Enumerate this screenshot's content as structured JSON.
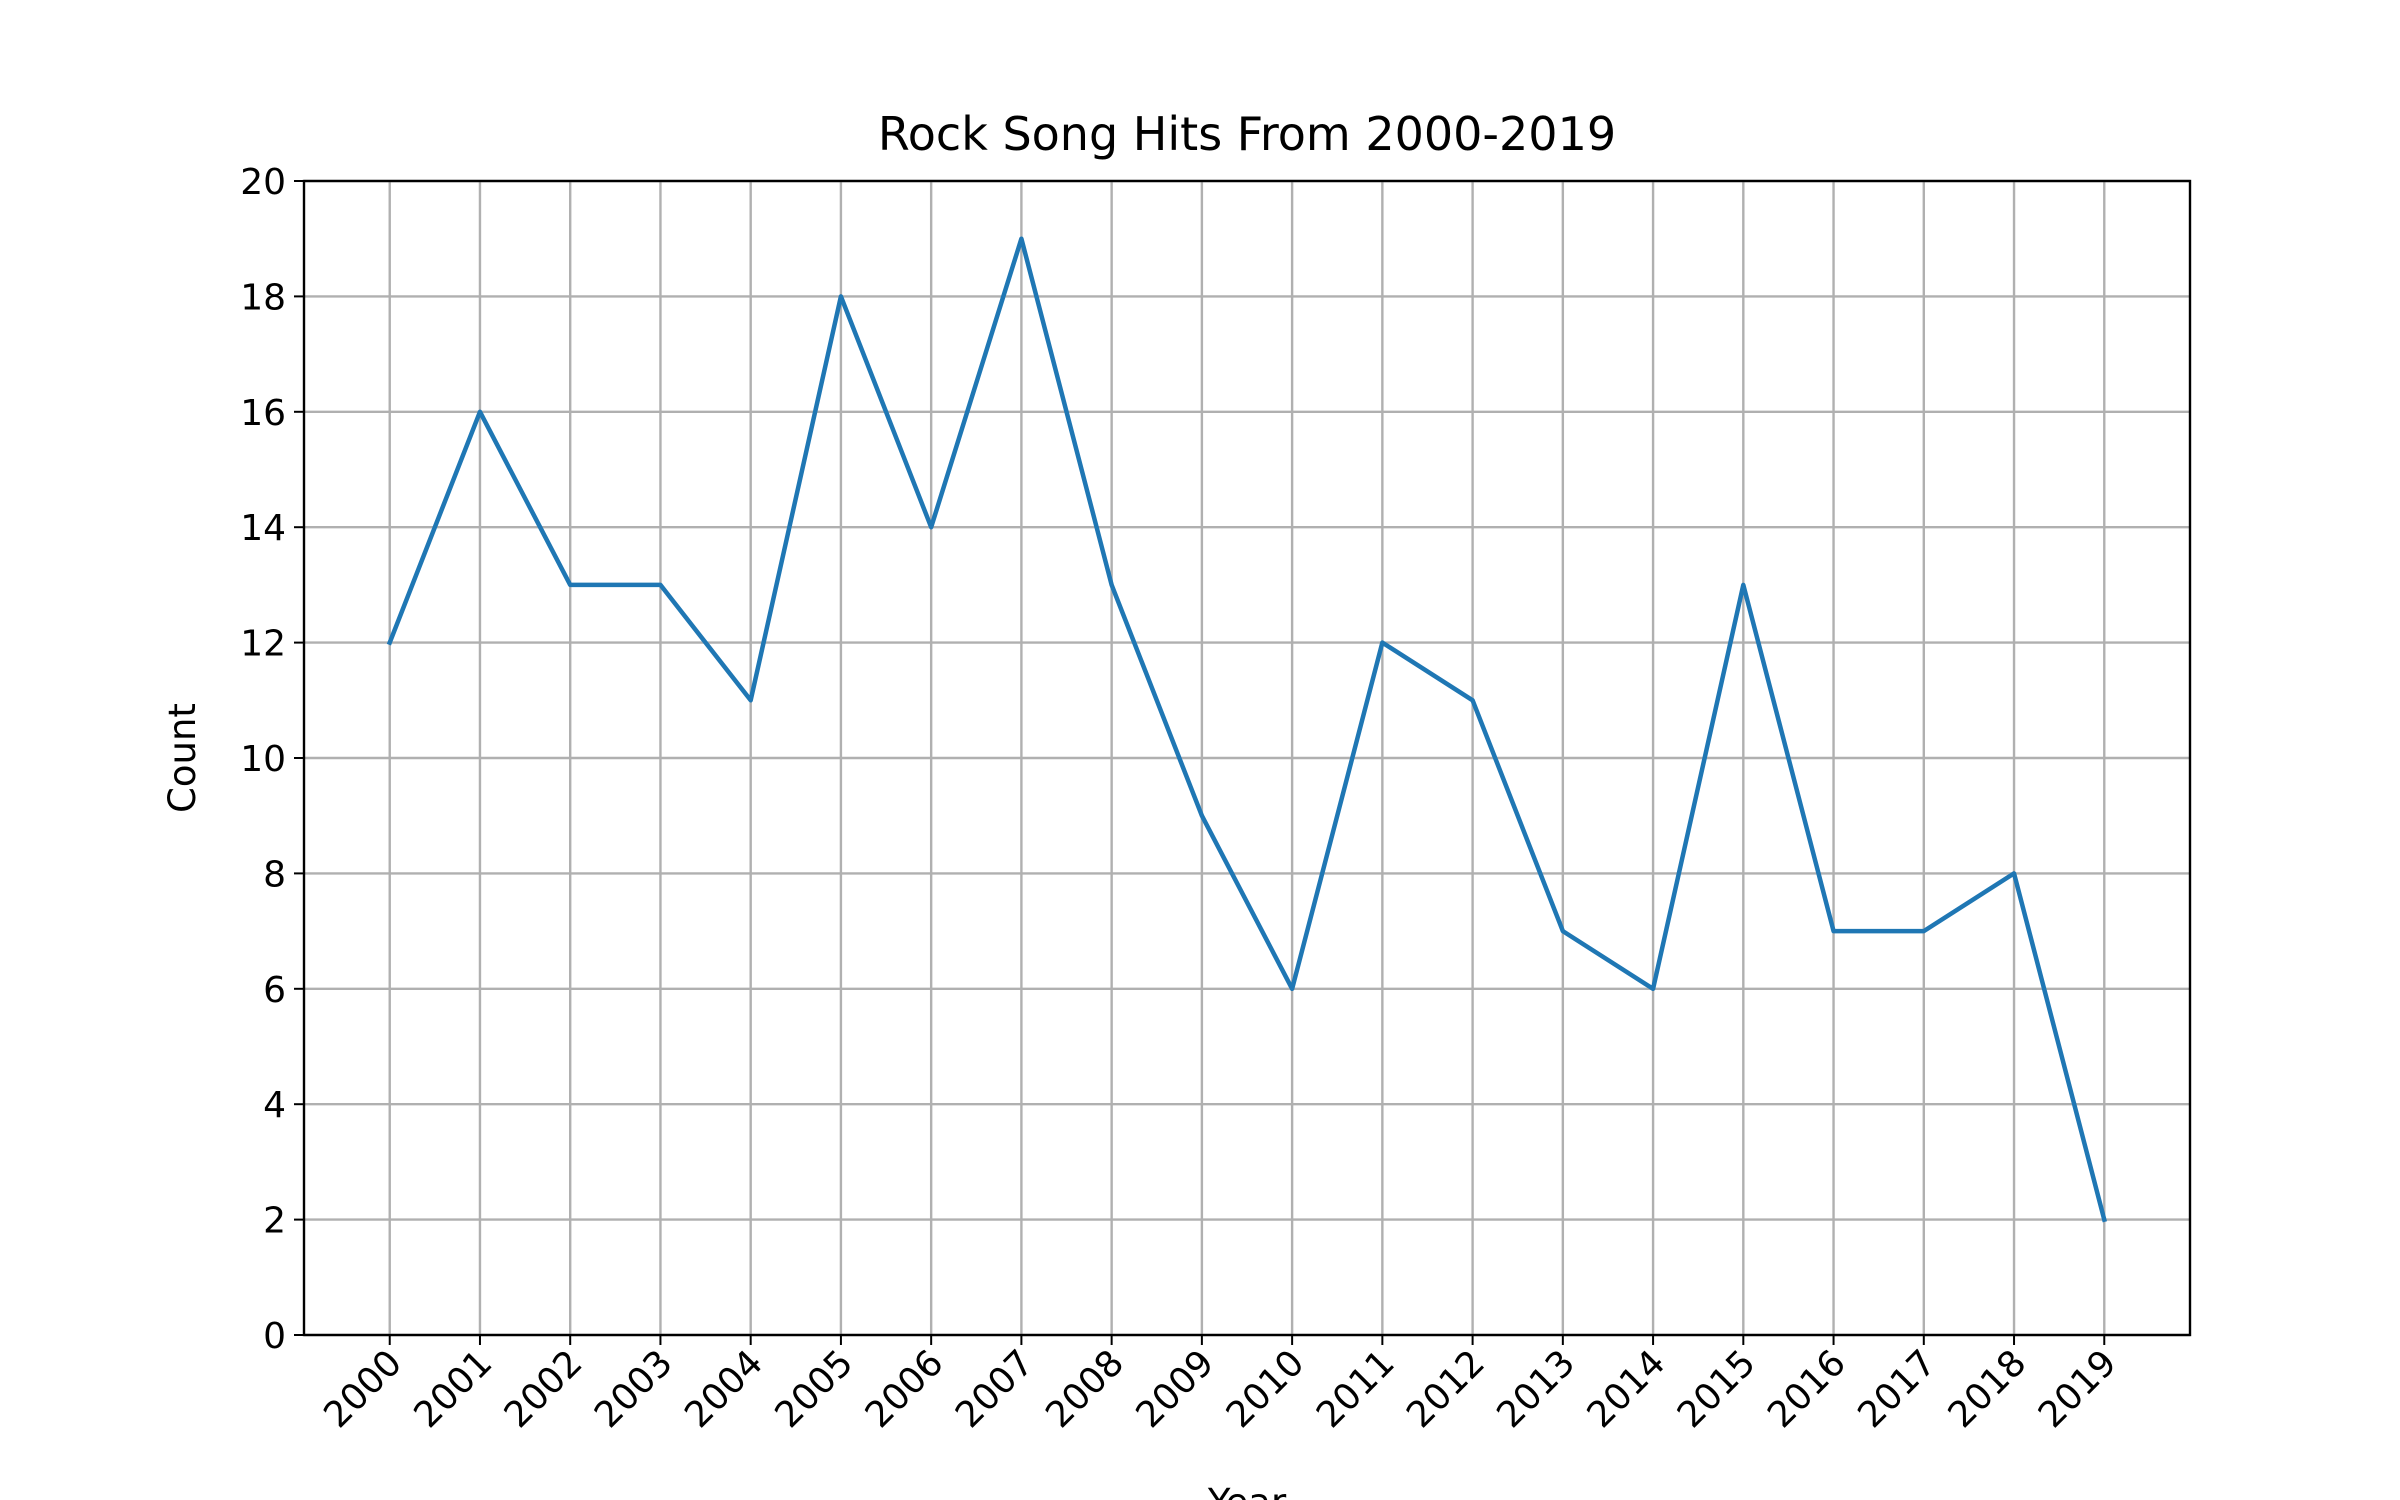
{
  "chart_data": {
    "type": "line",
    "title": "Rock Song Hits From 2000-2019",
    "x_label": "Year",
    "y_label": "Count",
    "x": [
      2000,
      2001,
      2002,
      2003,
      2004,
      2005,
      2006,
      2007,
      2008,
      2009,
      2010,
      2011,
      2012,
      2013,
      2014,
      2015,
      2016,
      2017,
      2018,
      2019
    ],
    "values": [
      12,
      16,
      13,
      13,
      11,
      18,
      14,
      19,
      13,
      9,
      6,
      12,
      11,
      7,
      6,
      13,
      7,
      7,
      8,
      2
    ],
    "color": "#1f77b4",
    "xlim": [
      1999.05,
      2019.95
    ],
    "xticks": [
      2000,
      2001,
      2002,
      2003,
      2004,
      2005,
      2006,
      2007,
      2008,
      2009,
      2010,
      2011,
      2012,
      2013,
      2014,
      2015,
      2016,
      2017,
      2018,
      2019
    ],
    "ylim": [
      0,
      20
    ],
    "yticks": [
      0,
      2,
      4,
      6,
      8,
      10,
      12,
      14,
      16,
      18,
      20
    ],
    "grid": true
  }
}
